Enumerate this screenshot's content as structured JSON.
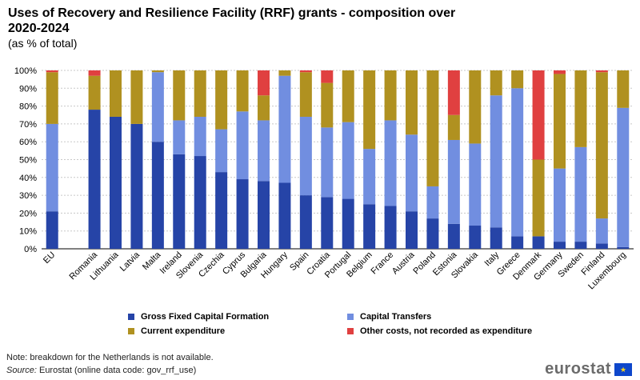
{
  "header": {
    "title": "Uses of Recovery and Resilience Facility (RRF) grants - composition over 2020-2024",
    "subtitle": "(as % of total)"
  },
  "chart_data": {
    "type": "bar",
    "stacked": true,
    "categories": [
      "EU",
      "",
      "Romania",
      "Lithuania",
      "Latvia",
      "Malta",
      "Ireland",
      "Slovenia",
      "Czechia",
      "Cyprus",
      "Bulgaria",
      "Hungary",
      "Spain",
      "Croatia",
      "Portugal",
      "Belgium",
      "France",
      "Austria",
      "Poland",
      "Estonia",
      "Slovakia",
      "Italy",
      "Greece",
      "Denmark",
      "Germany",
      "Sweden",
      "Finland",
      "Luxembourg"
    ],
    "series": [
      {
        "name": "Gross Fixed Capital Formation",
        "color": "#2644a7",
        "values": [
          21,
          null,
          78,
          74,
          70,
          60,
          53,
          52,
          43,
          39,
          38,
          37,
          30,
          29,
          28,
          25,
          24,
          21,
          17,
          14,
          13,
          12,
          7,
          7,
          4,
          4,
          3,
          1
        ]
      },
      {
        "name": "Capital Transfers",
        "color": "#718ee0",
        "values": [
          49,
          null,
          0,
          0,
          0,
          39,
          19,
          22,
          24,
          38,
          34,
          60,
          44,
          39,
          43,
          31,
          48,
          43,
          18,
          47,
          46,
          74,
          83,
          0,
          41,
          53,
          14,
          78
        ]
      },
      {
        "name": "Current expenditure",
        "color": "#b09120",
        "values": [
          29,
          null,
          19,
          26,
          30,
          1,
          28,
          26,
          33,
          23,
          14,
          3,
          25,
          25,
          29,
          44,
          28,
          36,
          65,
          14,
          41,
          14,
          10,
          43,
          53,
          43,
          82,
          21
        ]
      },
      {
        "name": "Other costs, not recorded as expenditure",
        "color": "#e04040",
        "values": [
          1,
          null,
          3,
          0,
          0,
          0,
          0,
          0,
          0,
          0,
          14,
          0,
          1,
          7,
          0,
          0,
          0,
          0,
          0,
          25,
          0,
          0,
          0,
          50,
          2,
          0,
          1,
          0
        ]
      }
    ],
    "ylim": [
      0,
      100
    ],
    "yticks": [
      "0%",
      "10%",
      "20%",
      "30%",
      "40%",
      "50%",
      "60%",
      "70%",
      "80%",
      "90%",
      "100%"
    ],
    "xlabel": "",
    "ylabel": "",
    "grid": true,
    "legend_position": "bottom"
  },
  "legend": {
    "gfcf": "Gross Fixed Capital Formation",
    "capital_transfers": "Capital Transfers",
    "current_expenditure": "Current expenditure",
    "other_costs": "Other costs, not recorded as expenditure"
  },
  "footer": {
    "note": "Note: breakdown for the Netherlands  is not available.",
    "source_label": "Source:",
    "source_text": " Eurostat (online data code: gov_rrf_use)"
  },
  "logo": {
    "text": "eurostat",
    "flag_icon": "eu-flag-icon"
  }
}
